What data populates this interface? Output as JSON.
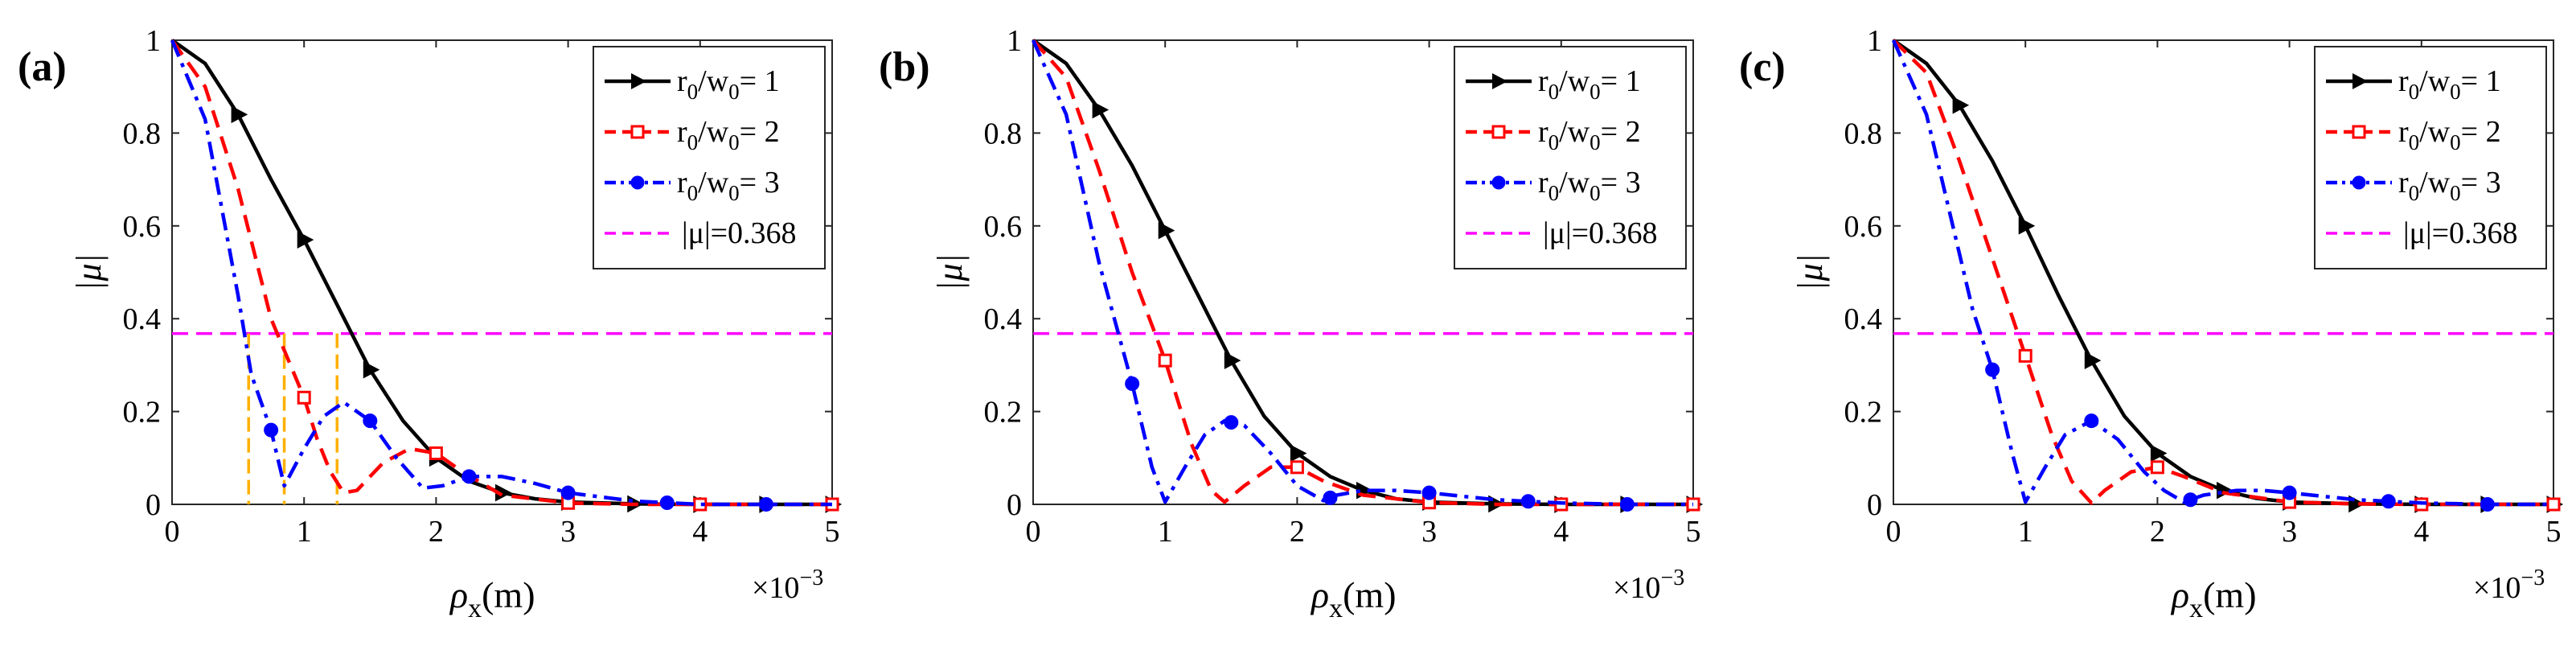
{
  "chart_data": [
    {
      "type": "line",
      "panel_label": "(a)",
      "xlabel": "ρ",
      "xlabel_sub": "x",
      "xlabel_unit": "(m)",
      "ylabel": "|μ|",
      "x_multiplier": "×10",
      "x_multiplier_exp": "−3",
      "xlim": [
        0,
        5
      ],
      "ylim": [
        0,
        1
      ],
      "xticks": [
        "0",
        "1",
        "2",
        "3",
        "4",
        "5"
      ],
      "yticks": [
        "0",
        "0.2",
        "0.4",
        "0.6",
        "0.8",
        "1"
      ],
      "threshold": 0.368,
      "legend": [
        {
          "label": "r0/w0= 1",
          "base1": "r",
          "sub1": "0",
          "base2": "/w",
          "sub2": "0",
          "tail": "= 1"
        },
        {
          "label": "r0/w0= 2",
          "base1": "r",
          "sub1": "0",
          "base2": "/w",
          "sub2": "0",
          "tail": "= 2"
        },
        {
          "label": "r0/w0= 3",
          "base1": "r",
          "sub1": "0",
          "base2": "/w",
          "sub2": "0",
          "tail": "= 3"
        },
        {
          "label": "|μ|=0.368"
        }
      ],
      "series": [
        {
          "name": "r0/w0= 1",
          "color": "#000000",
          "style": "solid",
          "marker": "triangle",
          "x": [
            0,
            0.25,
            0.5,
            0.75,
            1.0,
            1.25,
            1.5,
            1.75,
            2.0,
            2.25,
            2.5,
            2.75,
            3.0,
            3.5,
            4.0,
            4.5,
            5.0
          ],
          "y": [
            1,
            0.95,
            0.84,
            0.7,
            0.57,
            0.43,
            0.29,
            0.18,
            0.1,
            0.05,
            0.025,
            0.012,
            0.005,
            0.001,
            0,
            0,
            0
          ],
          "markers_x": [
            0.5,
            1.0,
            1.5,
            2.0,
            2.5,
            3.0,
            3.5,
            4.0,
            4.5,
            5.0
          ]
        },
        {
          "name": "r0/w0= 2",
          "color": "#ff0000",
          "style": "dashed",
          "marker": "square",
          "x": [
            0,
            0.25,
            0.5,
            0.75,
            1.0,
            1.1,
            1.2,
            1.3,
            1.4,
            1.6,
            1.8,
            2.0,
            2.2,
            2.5,
            3.0,
            3.5,
            4.0,
            4.5,
            5.0
          ],
          "y": [
            1,
            0.9,
            0.68,
            0.4,
            0.23,
            0.14,
            0.07,
            0.025,
            0.03,
            0.09,
            0.12,
            0.11,
            0.07,
            0.02,
            0.003,
            0,
            0,
            0,
            0
          ],
          "markers_x": [
            1.0,
            2.0,
            3.0,
            4.0,
            5.0
          ]
        },
        {
          "name": "r0/w0= 3",
          "color": "#0000ff",
          "style": "dashdot",
          "marker": "circle",
          "x": [
            0,
            0.25,
            0.5,
            0.6,
            0.75,
            0.85,
            1.0,
            1.15,
            1.3,
            1.5,
            1.7,
            1.9,
            2.05,
            2.25,
            2.5,
            2.75,
            3.0,
            3.5,
            4.0,
            4.5,
            5.0
          ],
          "y": [
            1,
            0.83,
            0.45,
            0.28,
            0.16,
            0.04,
            0.12,
            0.19,
            0.22,
            0.18,
            0.1,
            0.035,
            0.04,
            0.06,
            0.06,
            0.045,
            0.025,
            0.007,
            0,
            0,
            0
          ],
          "markers_x": [
            0.75,
            1.5,
            2.25,
            3.0,
            3.75,
            4.5
          ]
        }
      ],
      "orange_lines_x": [
        0.58,
        0.85,
        1.25
      ]
    },
    {
      "type": "line",
      "panel_label": "(b)",
      "xlabel": "ρ",
      "xlabel_sub": "x",
      "xlabel_unit": "(m)",
      "ylabel": "|μ|",
      "x_multiplier": "×10",
      "x_multiplier_exp": "−3",
      "xlim": [
        0,
        5
      ],
      "ylim": [
        0,
        1
      ],
      "xticks": [
        "0",
        "1",
        "2",
        "3",
        "4",
        "5"
      ],
      "yticks": [
        "0",
        "0.2",
        "0.4",
        "0.6",
        "0.8",
        "1"
      ],
      "threshold": 0.368,
      "legend": [
        {
          "label": "r0/w0= 1",
          "base1": "r",
          "sub1": "0",
          "base2": "/w",
          "sub2": "0",
          "tail": "= 1"
        },
        {
          "label": "r0/w0= 2",
          "base1": "r",
          "sub1": "0",
          "base2": "/w",
          "sub2": "0",
          "tail": "= 2"
        },
        {
          "label": "r0/w0= 3",
          "base1": "r",
          "sub1": "0",
          "base2": "/w",
          "sub2": "0",
          "tail": "= 3"
        },
        {
          "label": "|μ|=0.368"
        }
      ],
      "series": [
        {
          "name": "r0/w0= 1",
          "color": "#000000",
          "style": "solid",
          "marker": "triangle",
          "x": [
            0,
            0.25,
            0.5,
            0.75,
            1.0,
            1.25,
            1.5,
            1.75,
            2.0,
            2.25,
            2.5,
            2.75,
            3.0,
            3.5,
            4.0,
            4.5,
            5.0
          ],
          "y": [
            1,
            0.95,
            0.85,
            0.73,
            0.59,
            0.45,
            0.31,
            0.19,
            0.11,
            0.06,
            0.03,
            0.012,
            0.005,
            0.001,
            0,
            0,
            0
          ],
          "markers_x": [
            0.5,
            1.0,
            1.5,
            2.0,
            2.5,
            3.0,
            3.5,
            4.0,
            4.5,
            5.0
          ]
        },
        {
          "name": "r0/w0= 2",
          "color": "#ff0000",
          "style": "dashed",
          "marker": "square",
          "x": [
            0,
            0.25,
            0.5,
            0.75,
            1.0,
            1.2,
            1.35,
            1.45,
            1.6,
            1.8,
            2.0,
            2.2,
            2.5,
            3.0,
            3.5,
            4.0,
            4.5,
            5.0
          ],
          "y": [
            1,
            0.92,
            0.72,
            0.5,
            0.31,
            0.13,
            0.03,
            0.005,
            0.04,
            0.08,
            0.08,
            0.05,
            0.02,
            0.004,
            0,
            0,
            0,
            0
          ],
          "markers_x": [
            1.0,
            2.0,
            3.0,
            4.0,
            5.0
          ]
        },
        {
          "name": "r0/w0= 3",
          "color": "#0000ff",
          "style": "dashdot",
          "marker": "circle",
          "x": [
            0,
            0.25,
            0.5,
            0.75,
            0.9,
            1.0,
            1.15,
            1.3,
            1.45,
            1.6,
            1.8,
            2.0,
            2.2,
            2.3,
            2.5,
            2.75,
            3.0,
            3.5,
            4.0,
            4.5,
            5.0
          ],
          "y": [
            1,
            0.84,
            0.52,
            0.26,
            0.08,
            0.005,
            0.08,
            0.15,
            0.18,
            0.17,
            0.11,
            0.04,
            0.008,
            0.02,
            0.03,
            0.03,
            0.025,
            0.01,
            0.003,
            0,
            0
          ],
          "markers_x": [
            0.75,
            1.5,
            2.25,
            3.0,
            3.75,
            4.5
          ]
        }
      ],
      "orange_lines_x": []
    },
    {
      "type": "line",
      "panel_label": "(c)",
      "xlabel": "ρ",
      "xlabel_sub": "x",
      "xlabel_unit": "(m)",
      "ylabel": "|μ|",
      "x_multiplier": "×10",
      "x_multiplier_exp": "−3",
      "xlim": [
        0,
        5
      ],
      "ylim": [
        0,
        1
      ],
      "xticks": [
        "0",
        "1",
        "2",
        "3",
        "4",
        "5"
      ],
      "yticks": [
        "0",
        "0.2",
        "0.4",
        "0.6",
        "0.8",
        "1"
      ],
      "threshold": 0.368,
      "legend": [
        {
          "label": "r0/w0= 1",
          "base1": "r",
          "sub1": "0",
          "base2": "/w",
          "sub2": "0",
          "tail": "= 1"
        },
        {
          "label": "r0/w0= 2",
          "base1": "r",
          "sub1": "0",
          "base2": "/w",
          "sub2": "0",
          "tail": "= 2"
        },
        {
          "label": "r0/w0= 3",
          "base1": "r",
          "sub1": "0",
          "base2": "/w",
          "sub2": "0",
          "tail": "= 3"
        },
        {
          "label": "|μ|=0.368"
        }
      ],
      "series": [
        {
          "name": "r0/w0= 1",
          "color": "#000000",
          "style": "solid",
          "marker": "triangle",
          "x": [
            0,
            0.25,
            0.5,
            0.75,
            1.0,
            1.25,
            1.5,
            1.75,
            2.0,
            2.25,
            2.5,
            2.75,
            3.0,
            3.5,
            4.0,
            4.5,
            5.0
          ],
          "y": [
            1,
            0.95,
            0.86,
            0.74,
            0.6,
            0.45,
            0.31,
            0.19,
            0.11,
            0.06,
            0.03,
            0.013,
            0.005,
            0.001,
            0,
            0,
            0
          ],
          "markers_x": [
            0.5,
            1.0,
            1.5,
            2.0,
            2.5,
            3.0,
            3.5,
            4.0,
            4.5,
            5.0
          ]
        },
        {
          "name": "r0/w0= 2",
          "color": "#ff0000",
          "style": "dashed",
          "marker": "square",
          "x": [
            0,
            0.25,
            0.5,
            0.75,
            1.0,
            1.2,
            1.35,
            1.5,
            1.6,
            1.8,
            2.0,
            2.2,
            2.5,
            3.0,
            3.5,
            4.0,
            4.5,
            5.0
          ],
          "y": [
            1,
            0.93,
            0.74,
            0.53,
            0.32,
            0.15,
            0.05,
            0.003,
            0.03,
            0.07,
            0.08,
            0.06,
            0.025,
            0.005,
            0.001,
            0,
            0,
            0
          ],
          "markers_x": [
            1.0,
            2.0,
            3.0,
            4.0,
            5.0
          ]
        },
        {
          "name": "r0/w0= 3",
          "color": "#0000ff",
          "style": "dashdot",
          "marker": "circle",
          "x": [
            0,
            0.25,
            0.5,
            0.6,
            0.75,
            0.9,
            1.0,
            1.15,
            1.3,
            1.5,
            1.7,
            1.9,
            2.05,
            2.2,
            2.35,
            2.6,
            2.8,
            3.0,
            3.5,
            4.0,
            4.5,
            5.0
          ],
          "y": [
            1,
            0.84,
            0.54,
            0.42,
            0.29,
            0.11,
            0.005,
            0.08,
            0.15,
            0.18,
            0.14,
            0.07,
            0.03,
            0.005,
            0.02,
            0.03,
            0.03,
            0.025,
            0.01,
            0.003,
            0,
            0
          ],
          "markers_x": [
            0.75,
            1.5,
            2.25,
            3.0,
            3.75,
            4.5
          ]
        }
      ],
      "orange_lines_x": []
    }
  ]
}
